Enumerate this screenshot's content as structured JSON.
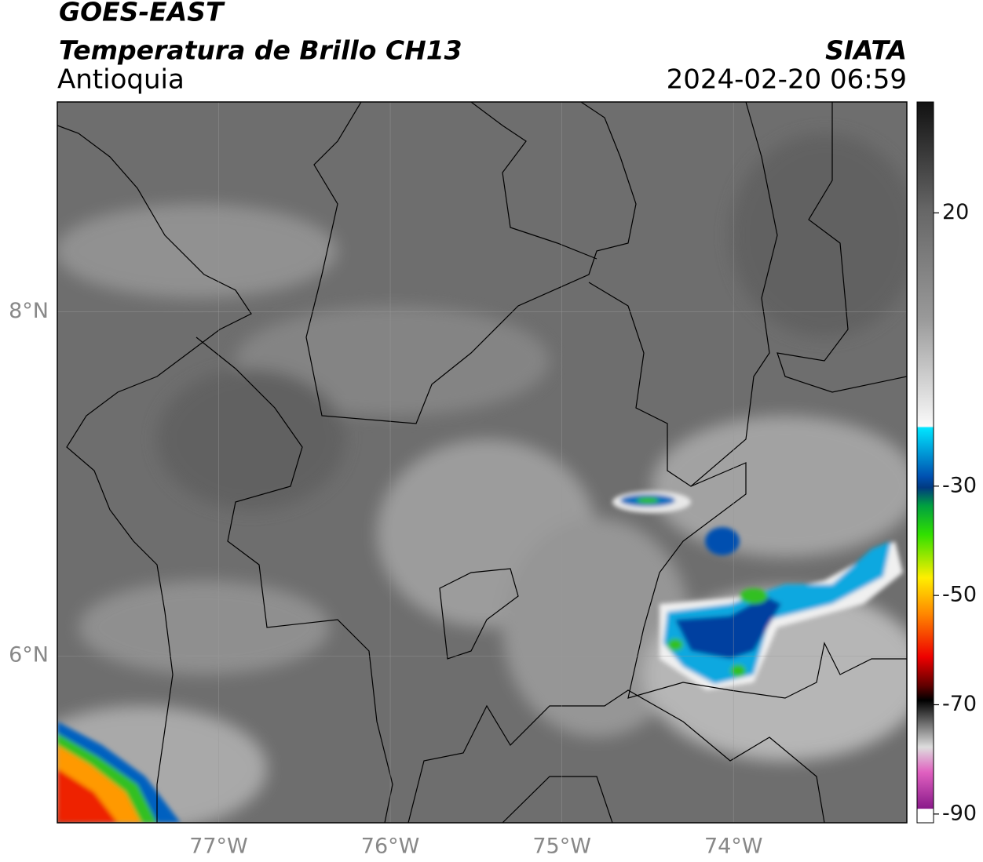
{
  "header": {
    "title": "GOES-EAST",
    "subtitle": "Temperatura de Brillo CH13",
    "region": "Antioquia",
    "source": "SIATA",
    "datetime": "2024-02-20 06:59"
  },
  "map": {
    "xlim": [
      -77.94,
      -72.99
    ],
    "ylim": [
      5.03,
      9.22
    ],
    "xticks": [
      {
        "value": -77,
        "label": "77°W"
      },
      {
        "value": -76,
        "label": "76°W"
      },
      {
        "value": -75,
        "label": "75°W"
      },
      {
        "value": -74,
        "label": "74°W"
      }
    ],
    "yticks": [
      {
        "value": 6,
        "label": "6°N"
      },
      {
        "value": 8,
        "label": "8°N"
      }
    ],
    "grid": true
  },
  "colorbar": {
    "lim": [
      -91.6,
      40.3
    ],
    "ticks": [
      20,
      -30,
      -50,
      -70,
      -90
    ]
  }
}
